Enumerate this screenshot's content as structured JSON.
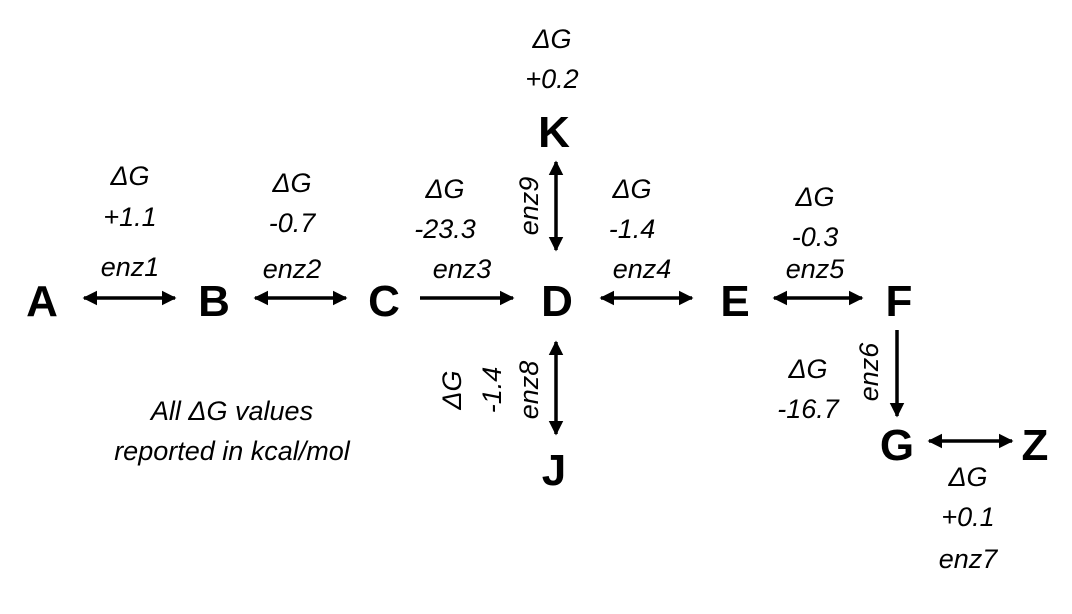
{
  "diagram": {
    "nodes": {
      "A": "A",
      "B": "B",
      "C": "C",
      "D": "D",
      "E": "E",
      "F": "F",
      "G": "G",
      "Z": "Z",
      "J": "J",
      "K": "K"
    },
    "reactions": [
      {
        "id": "r1",
        "from": "A",
        "to": "B",
        "enzyme": "enz1",
        "dg_symbol": "ΔG",
        "dg_value": "+1.1",
        "reversible": true
      },
      {
        "id": "r2",
        "from": "B",
        "to": "C",
        "enzyme": "enz2",
        "dg_symbol": "ΔG",
        "dg_value": "-0.7",
        "reversible": true
      },
      {
        "id": "r3",
        "from": "C",
        "to": "D",
        "enzyme": "enz3",
        "dg_symbol": "ΔG",
        "dg_value": "-23.3",
        "reversible": false
      },
      {
        "id": "r4",
        "from": "D",
        "to": "E",
        "enzyme": "enz4",
        "dg_symbol": "ΔG",
        "dg_value": "-1.4",
        "reversible": true
      },
      {
        "id": "r5",
        "from": "E",
        "to": "F",
        "enzyme": "enz5",
        "dg_symbol": "ΔG",
        "dg_value": "-0.3",
        "reversible": true
      },
      {
        "id": "r6",
        "from": "F",
        "to": "G",
        "enzyme": "enz6",
        "dg_symbol": "ΔG",
        "dg_value": "-16.7",
        "reversible": false
      },
      {
        "id": "r7",
        "from": "G",
        "to": "Z",
        "enzyme": "enz7",
        "dg_symbol": "ΔG",
        "dg_value": "+0.1",
        "reversible": true
      },
      {
        "id": "r8",
        "from": "D",
        "to": "J",
        "enzyme": "enz8",
        "dg_symbol": "ΔG",
        "dg_value": "-1.4",
        "reversible": true
      },
      {
        "id": "r9",
        "from": "D",
        "to": "K",
        "enzyme": "enz9",
        "dg_symbol": "ΔG",
        "dg_value": "+0.2",
        "reversible": true
      }
    ],
    "note": {
      "line1": "All ΔG values",
      "line2": "reported in kcal/mol"
    }
  }
}
